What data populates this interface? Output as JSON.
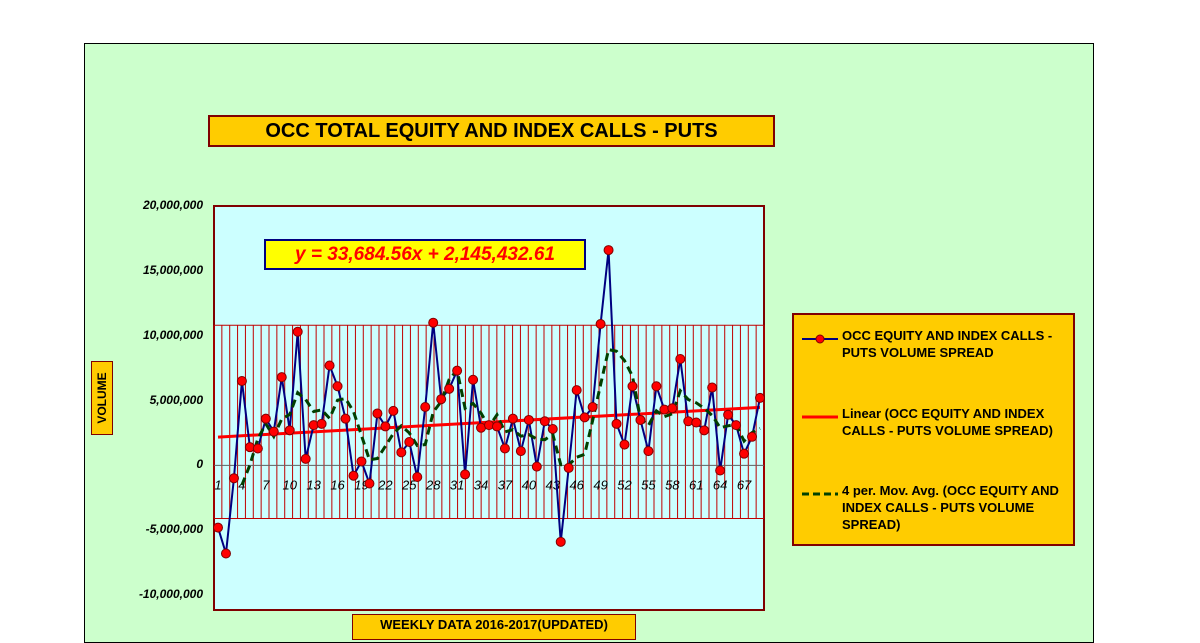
{
  "chart_data": {
    "type": "line",
    "title": "OCC TOTAL EQUITY AND INDEX CALLS - PUTS",
    "ylabel": "VOLUME",
    "xlabel": "WEEKLY DATA 2016-2017(UPDATED)",
    "ylim": [
      -10000000,
      20000000
    ],
    "xlim": [
      1,
      69
    ],
    "yticks": [
      "20,000,000",
      "15,000,000",
      "10,000,000",
      "5,000,000",
      "0",
      "-5,000,000",
      "-10,000,000"
    ],
    "ytick_values": [
      20000000,
      15000000,
      10000000,
      5000000,
      0,
      -5000000,
      -10000000
    ],
    "xticks": [
      1,
      4,
      7,
      10,
      13,
      16,
      19,
      22,
      25,
      28,
      31,
      34,
      37,
      40,
      43,
      46,
      49,
      52,
      55,
      58,
      61,
      64,
      67
    ],
    "legend_position": "right",
    "grid": "vertical lines between 10,800,000 and -4,100,000",
    "series": [
      {
        "name": "OCC EQUITY AND INDEX CALLS - PUTS VOLUME SPREAD",
        "x": [
          1,
          2,
          3,
          4,
          5,
          6,
          7,
          8,
          9,
          10,
          11,
          12,
          13,
          14,
          15,
          16,
          17,
          18,
          19,
          20,
          21,
          22,
          23,
          24,
          25,
          26,
          27,
          28,
          29,
          30,
          31,
          32,
          33,
          34,
          35,
          36,
          37,
          38,
          39,
          40,
          41,
          42,
          43,
          44,
          45,
          46,
          47,
          48,
          49,
          50,
          51,
          52,
          53,
          54,
          55,
          56,
          57,
          58,
          59,
          60,
          61,
          62,
          63,
          64,
          65,
          66,
          67,
          68,
          69
        ],
        "values": [
          -4800000,
          -6800000,
          -1000000,
          6500000,
          1400000,
          1300000,
          3600000,
          2600000,
          6800000,
          2700000,
          10300000,
          500000,
          3100000,
          3200000,
          7700000,
          6100000,
          3600000,
          -800000,
          300000,
          -1400000,
          4000000,
          3000000,
          4200000,
          1000000,
          1800000,
          -900000,
          4500000,
          11000000,
          5100000,
          5900000,
          7300000,
          -700000,
          6600000,
          2900000,
          3100000,
          3000000,
          1300000,
          3600000,
          1100000,
          3500000,
          -100000,
          3400000,
          2800000,
          -5900000,
          -200000,
          5800000,
          3700000,
          4500000,
          10900000,
          16600000,
          3200000,
          1600000,
          6100000,
          3500000,
          1100000,
          6100000,
          4300000,
          4400000,
          8200000,
          3400000,
          3300000,
          2700000,
          6000000,
          -400000,
          3900000,
          3100000,
          900000,
          2200000,
          5200000
        ]
      },
      {
        "name": "Linear (OCC EQUITY AND INDEX CALLS - PUTS VOLUME SPREAD)",
        "slope": 33684.56,
        "intercept": 2145432.61
      },
      {
        "name": "4 per. Mov. Avg. (OCC EQUITY AND INDEX CALLS - PUTS VOLUME SPREAD)",
        "period": 4
      }
    ],
    "annotation": "y = 33,684.56x + 2,145,432.61",
    "colors": {
      "plot_background": "#ccffff",
      "chart_background": "#ccffcc",
      "series_line": "#000080",
      "series_marker": "#ff0000",
      "trend_line": "#ff0000",
      "moving_avg": "#004000",
      "grid_lines": "#c00000",
      "box_fill": "#ffcc00",
      "box_border": "#800000"
    }
  },
  "legend": {
    "items": [
      "OCC EQUITY AND INDEX CALLS - PUTS VOLUME SPREAD",
      "Linear (OCC EQUITY AND INDEX CALLS - PUTS VOLUME SPREAD)",
      "4 per. Mov. Avg. (OCC EQUITY AND INDEX CALLS - PUTS VOLUME SPREAD)"
    ]
  }
}
